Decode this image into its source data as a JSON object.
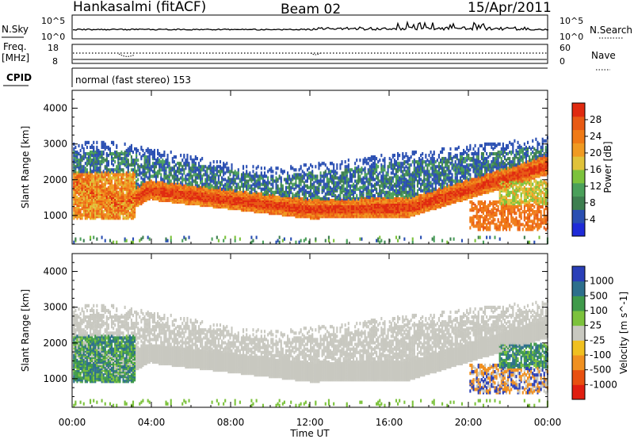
{
  "header": {
    "station": "Hankasalmi (fitACF)",
    "beam": "Beam 02",
    "date": "15/Apr/2011"
  },
  "top_panel": {
    "left_label": "N.Sky",
    "right_label": "N.Search",
    "left_top_tick": "10^5",
    "left_bottom_tick": "10^0",
    "right_top_tick": "10^5",
    "right_bottom_tick": "10^0"
  },
  "freq_panel": {
    "label_line1": "Freq.",
    "label_line2": "[MHz]",
    "left_top_tick": "18",
    "left_bottom_tick": "8",
    "right_label": "Nave",
    "right_top_tick": "60",
    "right_bottom_tick": "0"
  },
  "cpid": {
    "label": "CPID",
    "text": "normal (fast stereo) 153"
  },
  "x_axis": {
    "label": "Time UT",
    "ticks": [
      "00:00",
      "04:00",
      "08:00",
      "12:00",
      "16:00",
      "20:00",
      "00:00"
    ]
  },
  "chart_data": [
    {
      "type": "heatmap",
      "name": "power",
      "ylabel": "Slant Range [km]",
      "yticks": [
        "1000",
        "2000",
        "3000",
        "4000"
      ],
      "ylim": [
        200,
        4500
      ],
      "xlim": [
        0,
        24
      ],
      "colorbar_label": "Power [dB]",
      "colorbar_ticks": [
        "4",
        "8",
        "12",
        "16",
        "20",
        "24",
        "28"
      ],
      "colorbar_colors": [
        "#1f2bd8",
        "#2a4fb2",
        "#3e7f50",
        "#4aa05a",
        "#7cc23c",
        "#e0c23a",
        "#f09a22",
        "#f07a16",
        "#e85a14",
        "#e02a10"
      ]
    },
    {
      "type": "heatmap",
      "name": "velocity",
      "ylabel": "Slant Range [km]",
      "yticks": [
        "1000",
        "2000",
        "3000",
        "4000"
      ],
      "ylim": [
        200,
        4500
      ],
      "xlim": [
        0,
        24
      ],
      "colorbar_label": "Velocity [m s^-1]",
      "colorbar_ticks": [
        "1000",
        "500",
        "100",
        "25",
        "-25",
        "-100",
        "-500",
        "-1000"
      ],
      "colorbar_colors": [
        "#2a3fb8",
        "#2d6f8c",
        "#3f9a4a",
        "#7cc23c",
        "#c8c8c0",
        "#f0c020",
        "#f09020",
        "#e85010",
        "#e01e10"
      ]
    }
  ]
}
